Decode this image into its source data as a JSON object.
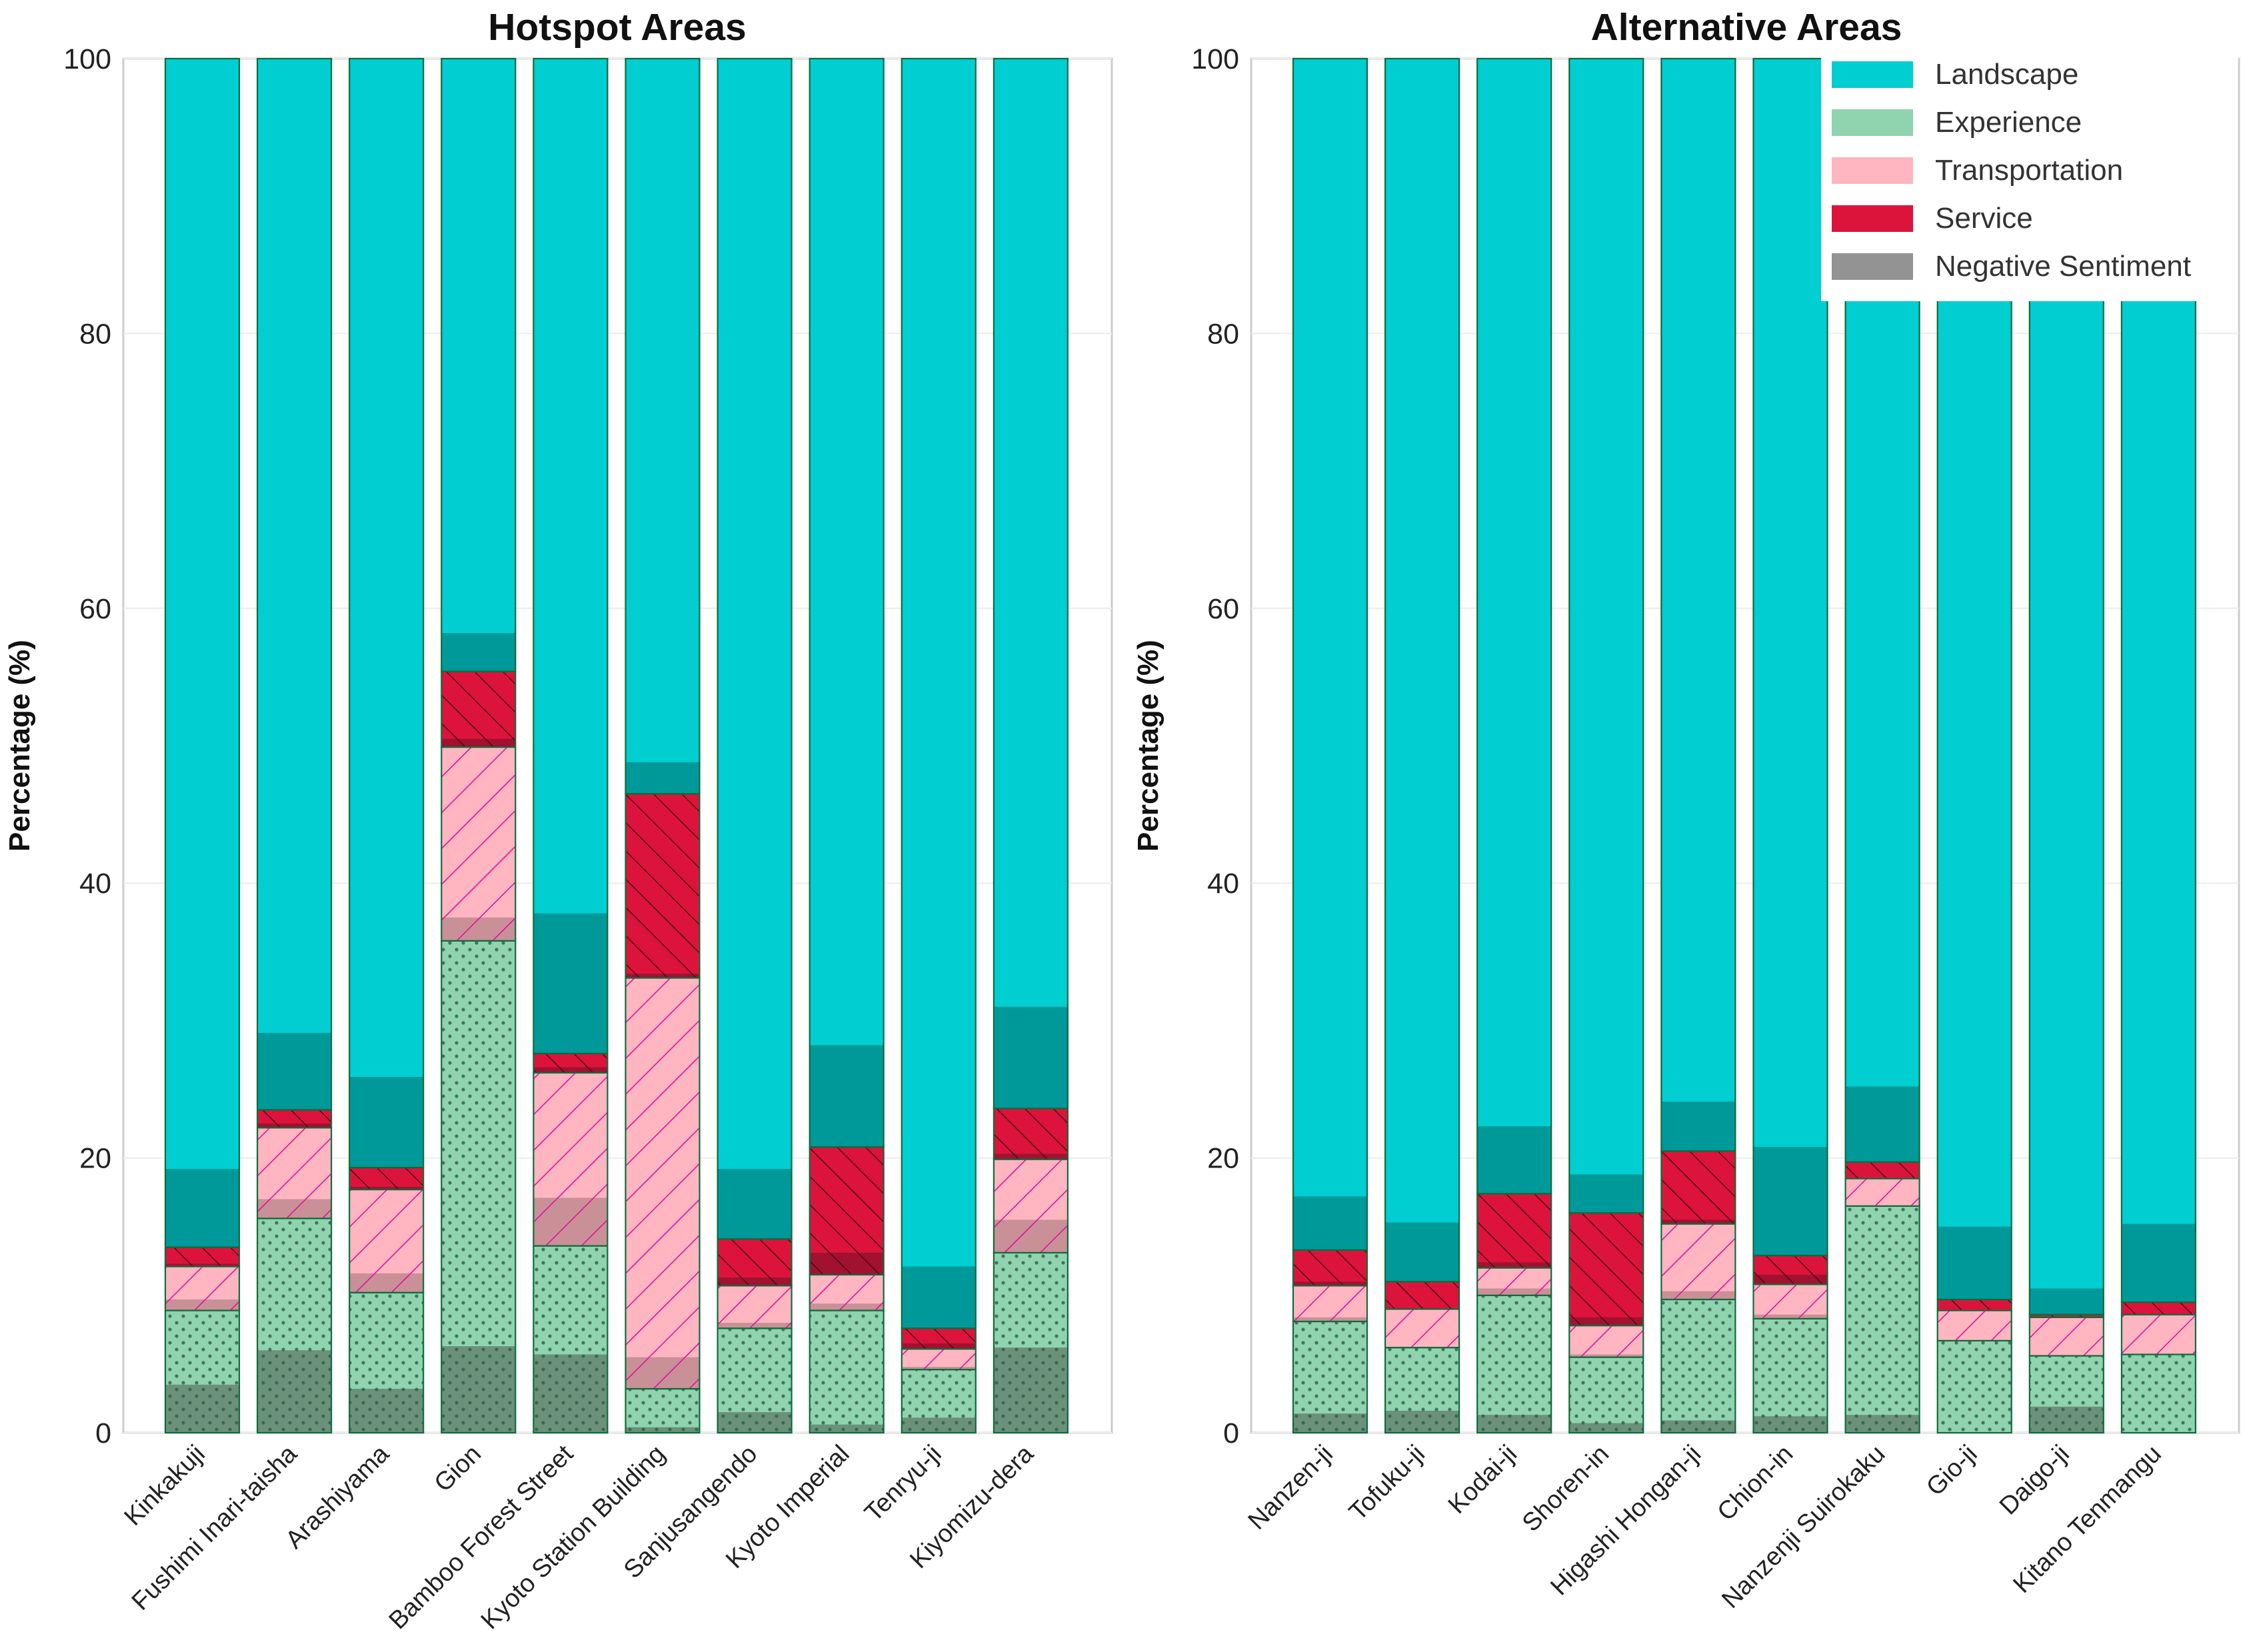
{
  "chart_data": [
    {
      "type": "bar",
      "stacked": true,
      "title": "Hotspot Areas",
      "ylabel": "Percentage (%)",
      "xlabel": "",
      "ylim": [
        0,
        100
      ],
      "yticks": [
        0,
        20,
        40,
        60,
        80,
        100
      ],
      "grid": true,
      "categories": [
        "Kinkakuji",
        "Fushimi Inari-taisha",
        "Arashiyama",
        "Gion",
        "Bamboo Forest Street",
        "Kyoto Station Building",
        "Sanjusangendo",
        "Kyoto Imperial",
        "Tenryu-ji",
        "Kiyomizu-dera"
      ],
      "series": [
        {
          "name": "Experience",
          "values": [
            8.9,
            15.6,
            10.2,
            35.8,
            13.6,
            3.2,
            7.6,
            8.9,
            4.6,
            13.1
          ],
          "negative": [
            3.5,
            6.0,
            3.2,
            6.3,
            5.7,
            0.4,
            1.5,
            0.6,
            1.1,
            6.2
          ]
        },
        {
          "name": "Transportation",
          "values": [
            3.2,
            6.6,
            7.5,
            14.1,
            12.6,
            29.9,
            3.1,
            2.6,
            1.5,
            6.8
          ],
          "negative": [
            0.8,
            1.4,
            1.4,
            1.7,
            3.5,
            2.3,
            0.4,
            0.5,
            0.2,
            2.4
          ]
        },
        {
          "name": "Service",
          "values": [
            1.4,
            1.3,
            1.6,
            5.5,
            1.4,
            13.4,
            3.4,
            9.3,
            1.5,
            3.7
          ],
          "negative": [
            0.2,
            0.3,
            0.2,
            0.6,
            0.4,
            0.3,
            0.6,
            1.6,
            0.4,
            0.4
          ]
        },
        {
          "name": "Landscape",
          "values": [
            86.5,
            76.5,
            80.7,
            44.6,
            72.4,
            53.5,
            85.9,
            79.2,
            92.4,
            76.4
          ],
          "negative": [
            5.7,
            5.6,
            6.6,
            2.8,
            10.2,
            2.3,
            5.1,
            7.4,
            4.5,
            7.4
          ]
        }
      ]
    },
    {
      "type": "bar",
      "stacked": true,
      "title": "Alternative Areas",
      "ylabel": "Percentage (%)",
      "xlabel": "",
      "ylim": [
        0,
        100
      ],
      "yticks": [
        0,
        20,
        40,
        60,
        80,
        100
      ],
      "grid": true,
      "legend_position": "top-right",
      "legend": [
        "Landscape",
        "Experience",
        "Transportation",
        "Service",
        "Negative Sentiment"
      ],
      "categories": [
        "Nanzen-ji",
        "Tofuku-ji",
        "Kodai-ji",
        "Shoren-in",
        "Higashi Hongan-ji",
        "Chion-in",
        "Nanzenji Suirokaku",
        "Gio-ji",
        "Daigo-ji",
        "Kitano Tenmangu"
      ],
      "series": [
        {
          "name": "Experience",
          "values": [
            8.1,
            6.2,
            10.0,
            5.5,
            9.7,
            8.3,
            16.5,
            6.7,
            5.6,
            5.7
          ],
          "negative": [
            1.4,
            1.6,
            1.3,
            0.7,
            0.9,
            1.2,
            1.3,
            0,
            1.9,
            0
          ]
        },
        {
          "name": "Transportation",
          "values": [
            2.6,
            2.8,
            2.0,
            2.3,
            5.5,
            2.5,
            2.0,
            2.2,
            2.8,
            2.9
          ],
          "negative": [
            0.3,
            0,
            0.5,
            0.2,
            0.6,
            0.3,
            0,
            0,
            0,
            0
          ]
        },
        {
          "name": "Service",
          "values": [
            2.6,
            2.0,
            5.4,
            8.2,
            5.3,
            2.1,
            1.2,
            0.8,
            0.2,
            0.9
          ],
          "negative": [
            0.3,
            0,
            0.4,
            0.6,
            0.3,
            0.7,
            0,
            0,
            0,
            0
          ]
        },
        {
          "name": "Landscape",
          "values": [
            86.7,
            89.0,
            82.6,
            84.0,
            79.5,
            87.1,
            80.3,
            90.3,
            91.4,
            90.5
          ],
          "negative": [
            3.9,
            4.3,
            4.9,
            2.8,
            3.6,
            7.9,
            5.5,
            5.3,
            1.9,
            5.7
          ]
        }
      ]
    }
  ],
  "colors": {
    "Landscape": "#00CED1",
    "Landscape_negative": "#00999A",
    "Experience": "#8FD3AF",
    "Experience_negative": "#6B917B",
    "Transportation": "#FFB6C1",
    "Transportation_negative": "#C99097",
    "Service": "#DC143C",
    "Service_negative": "#A01230",
    "Negative Sentiment": "#939393",
    "grid": "#ebebeb",
    "frame": "#cccccc"
  }
}
